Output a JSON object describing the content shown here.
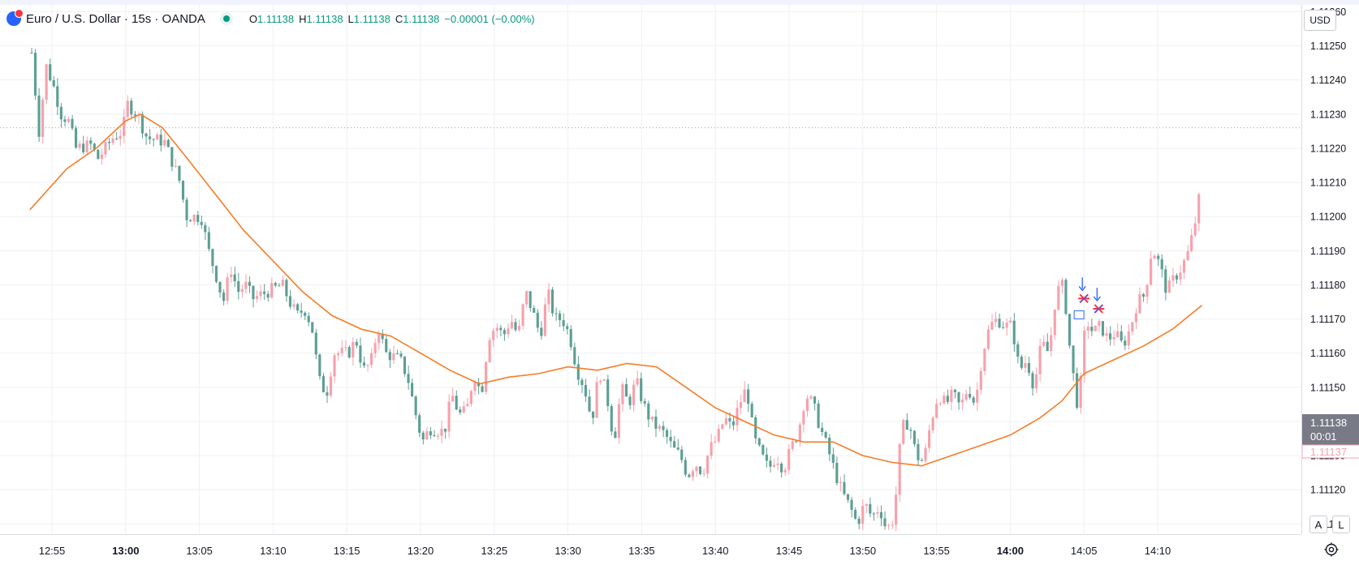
{
  "legend": {
    "title": "Euro / U.S. Dollar · 15s · OANDA",
    "o_label": "O",
    "o_value": "1.11138",
    "h_label": "H",
    "h_value": "1.11138",
    "l_label": "L",
    "l_value": "1.11138",
    "c_label": "C",
    "c_value": "1.11138",
    "change": "−0.00001 (−0.00%)"
  },
  "currency_button": "USD",
  "auto_scale_button": "A",
  "log_scale_button": "L",
  "settings_icon": "gear-icon",
  "price_tag": {
    "price": "1.11138",
    "countdown": "00:01",
    "prev": "1.11137"
  },
  "colors": {
    "up": "#f7a1ad",
    "down": "#5d9f93",
    "ma": "#f57c26",
    "grid": "#eef0f4",
    "marker_red": "#f23645",
    "marker_blue": "#2962ff"
  },
  "chart_data": {
    "type": "candlestick",
    "symbol": "Euro / U.S. Dollar",
    "interval": "15s",
    "x_ticks": [
      "12:55",
      "13:00",
      "13:05",
      "13:10",
      "13:15",
      "13:20",
      "13:25",
      "13:30",
      "13:35",
      "13:40",
      "13:45",
      "13:50",
      "13:55",
      "14:00",
      "14:05",
      "14:10"
    ],
    "x_ticks_bold": [
      "13:00",
      "14:00"
    ],
    "y_ticks": [
      "1.11260",
      "1.11250",
      "1.11240",
      "1.11230",
      "1.11220",
      "1.11210",
      "1.11200",
      "1.11190",
      "1.11180",
      "1.11170",
      "1.11160",
      "1.11150",
      "1.11140",
      "1.11130",
      "1.11120",
      "1.11110"
    ],
    "y_range": [
      1.11107,
      1.11262
    ],
    "reference_line": 1.11226,
    "close_path": [
      {
        "t": "12:53:30",
        "p": 1.11248
      },
      {
        "t": "12:54:00",
        "p": 1.11225
      },
      {
        "t": "12:54:30",
        "p": 1.11244
      },
      {
        "t": "12:55:00",
        "p": 1.11238
      },
      {
        "t": "12:55:30",
        "p": 1.1123
      },
      {
        "t": "12:56:00",
        "p": 1.11228
      },
      {
        "t": "12:56:30",
        "p": 1.1122
      },
      {
        "t": "12:57:30",
        "p": 1.11221
      },
      {
        "t": "12:58:00",
        "p": 1.11217
      },
      {
        "t": "12:59:00",
        "p": 1.11223
      },
      {
        "t": "12:59:40",
        "p": 1.11225
      },
      {
        "t": "13:00:00",
        "p": 1.11233
      },
      {
        "t": "13:00:40",
        "p": 1.1123
      },
      {
        "t": "13:01:20",
        "p": 1.11223
      },
      {
        "t": "13:02:30",
        "p": 1.11222
      },
      {
        "t": "13:03:30",
        "p": 1.11211
      },
      {
        "t": "13:04:00",
        "p": 1.112
      },
      {
        "t": "13:05:00",
        "p": 1.112
      },
      {
        "t": "13:05:30",
        "p": 1.1119
      },
      {
        "t": "13:06:00",
        "p": 1.11183
      },
      {
        "t": "13:06:30",
        "p": 1.11175
      },
      {
        "t": "13:07:00",
        "p": 1.11185
      },
      {
        "t": "13:07:30",
        "p": 1.11178
      },
      {
        "t": "13:08:00",
        "p": 1.1118
      },
      {
        "t": "13:08:30",
        "p": 1.11176
      },
      {
        "t": "13:09:30",
        "p": 1.11178
      },
      {
        "t": "13:10:30",
        "p": 1.1118
      },
      {
        "t": "13:11:00",
        "p": 1.11175
      },
      {
        "t": "13:11:30",
        "p": 1.11171
      },
      {
        "t": "13:12:00",
        "p": 1.11173
      },
      {
        "t": "13:12:30",
        "p": 1.11168
      },
      {
        "t": "13:13:00",
        "p": 1.11152
      },
      {
        "t": "13:13:30",
        "p": 1.11148
      },
      {
        "t": "13:14:00",
        "p": 1.1116
      },
      {
        "t": "13:15:00",
        "p": 1.1116
      },
      {
        "t": "13:15:30",
        "p": 1.11164
      },
      {
        "t": "13:16:00",
        "p": 1.11155
      },
      {
        "t": "13:16:30",
        "p": 1.11157
      },
      {
        "t": "13:17:00",
        "p": 1.11168
      },
      {
        "t": "13:17:30",
        "p": 1.1116
      },
      {
        "t": "13:18:30",
        "p": 1.11158
      },
      {
        "t": "13:19:00",
        "p": 1.11153
      },
      {
        "t": "13:19:30",
        "p": 1.11143
      },
      {
        "t": "13:20:00",
        "p": 1.11134
      },
      {
        "t": "13:20:30",
        "p": 1.11138
      },
      {
        "t": "13:21:30",
        "p": 1.11137
      },
      {
        "t": "13:22:00",
        "p": 1.11148
      },
      {
        "t": "13:22:30",
        "p": 1.11142
      },
      {
        "t": "13:23:00",
        "p": 1.11143
      },
      {
        "t": "13:23:30",
        "p": 1.11154
      },
      {
        "t": "13:24:00",
        "p": 1.11148
      },
      {
        "t": "13:24:30",
        "p": 1.11165
      },
      {
        "t": "13:25:00",
        "p": 1.11168
      },
      {
        "t": "13:25:30",
        "p": 1.11165
      },
      {
        "t": "13:26:00",
        "p": 1.1117
      },
      {
        "t": "13:26:30",
        "p": 1.11165
      },
      {
        "t": "13:27:00",
        "p": 1.11178
      },
      {
        "t": "13:27:30",
        "p": 1.11172
      },
      {
        "t": "13:28:00",
        "p": 1.11165
      },
      {
        "t": "13:28:30",
        "p": 1.11178
      },
      {
        "t": "13:29:00",
        "p": 1.1117
      },
      {
        "t": "13:29:30",
        "p": 1.1117
      },
      {
        "t": "13:30:00",
        "p": 1.11165
      },
      {
        "t": "13:30:30",
        "p": 1.11155
      },
      {
        "t": "13:31:00",
        "p": 1.1115
      },
      {
        "t": "13:31:30",
        "p": 1.1114
      },
      {
        "t": "13:32:00",
        "p": 1.11155
      },
      {
        "t": "13:32:30",
        "p": 1.11148
      },
      {
        "t": "13:33:00",
        "p": 1.11134
      },
      {
        "t": "13:33:30",
        "p": 1.1115
      },
      {
        "t": "13:34:00",
        "p": 1.11145
      },
      {
        "t": "13:34:30",
        "p": 1.11152
      },
      {
        "t": "13:35:00",
        "p": 1.11145
      },
      {
        "t": "13:35:30",
        "p": 1.1114
      },
      {
        "t": "13:36:00",
        "p": 1.11138
      },
      {
        "t": "13:36:30",
        "p": 1.11136
      },
      {
        "t": "13:37:00",
        "p": 1.11132
      },
      {
        "t": "13:37:30",
        "p": 1.1113
      },
      {
        "t": "13:38:00",
        "p": 1.11124
      },
      {
        "t": "13:38:30",
        "p": 1.11128
      },
      {
        "t": "13:39:00",
        "p": 1.11125
      },
      {
        "t": "13:39:30",
        "p": 1.11132
      },
      {
        "t": "13:40:00",
        "p": 1.11135
      },
      {
        "t": "13:40:30",
        "p": 1.11141
      },
      {
        "t": "13:41:00",
        "p": 1.11138
      },
      {
        "t": "13:41:30",
        "p": 1.11145
      },
      {
        "t": "13:42:00",
        "p": 1.1115
      },
      {
        "t": "13:42:30",
        "p": 1.11135
      },
      {
        "t": "13:43:00",
        "p": 1.1113
      },
      {
        "t": "13:43:30",
        "p": 1.11126
      },
      {
        "t": "13:44:00",
        "p": 1.1113
      },
      {
        "t": "13:44:30",
        "p": 1.11126
      },
      {
        "t": "13:45:00",
        "p": 1.11132
      },
      {
        "t": "13:45:30",
        "p": 1.11137
      },
      {
        "t": "13:46:00",
        "p": 1.11148
      },
      {
        "t": "13:46:30",
        "p": 1.11145
      },
      {
        "t": "13:47:00",
        "p": 1.11138
      },
      {
        "t": "13:47:30",
        "p": 1.11132
      },
      {
        "t": "13:48:00",
        "p": 1.11125
      },
      {
        "t": "13:48:30",
        "p": 1.11119
      },
      {
        "t": "13:49:00",
        "p": 1.11115
      },
      {
        "t": "13:49:30",
        "p": 1.1111
      },
      {
        "t": "13:50:00",
        "p": 1.11116
      },
      {
        "t": "13:50:30",
        "p": 1.11112
      },
      {
        "t": "13:51:00",
        "p": 1.11115
      },
      {
        "t": "13:51:30",
        "p": 1.11108
      },
      {
        "t": "13:52:00",
        "p": 1.11112
      },
      {
        "t": "13:52:30",
        "p": 1.11138
      },
      {
        "t": "13:53:00",
        "p": 1.1114
      },
      {
        "t": "13:53:30",
        "p": 1.1113
      },
      {
        "t": "13:54:00",
        "p": 1.11128
      },
      {
        "t": "13:54:30",
        "p": 1.1114
      },
      {
        "t": "13:55:00",
        "p": 1.11148
      },
      {
        "t": "13:55:30",
        "p": 1.11145
      },
      {
        "t": "13:56:00",
        "p": 1.11148
      },
      {
        "t": "13:56:30",
        "p": 1.11144
      },
      {
        "t": "13:57:00",
        "p": 1.1115
      },
      {
        "t": "13:57:30",
        "p": 1.11145
      },
      {
        "t": "13:58:00",
        "p": 1.1116
      },
      {
        "t": "13:58:30",
        "p": 1.11168
      },
      {
        "t": "13:59:00",
        "p": 1.1117
      },
      {
        "t": "13:59:30",
        "p": 1.11168
      },
      {
        "t": "14:00:00",
        "p": 1.11168
      },
      {
        "t": "14:00:30",
        "p": 1.11155
      },
      {
        "t": "14:01:00",
        "p": 1.11158
      },
      {
        "t": "14:01:30",
        "p": 1.1115
      },
      {
        "t": "14:02:00",
        "p": 1.11163
      },
      {
        "t": "14:02:30",
        "p": 1.1116
      },
      {
        "t": "14:03:00",
        "p": 1.11178
      },
      {
        "t": "14:03:30",
        "p": 1.1118
      },
      {
        "t": "14:04:00",
        "p": 1.11158
      },
      {
        "t": "14:04:30",
        "p": 1.11143
      },
      {
        "t": "14:05:00",
        "p": 1.1117
      },
      {
        "t": "14:05:30",
        "p": 1.11166
      },
      {
        "t": "14:06:00",
        "p": 1.11168
      },
      {
        "t": "14:06:30",
        "p": 1.11164
      },
      {
        "t": "14:07:00",
        "p": 1.11166
      },
      {
        "t": "14:07:30",
        "p": 1.11162
      },
      {
        "t": "14:08:00",
        "p": 1.11167
      },
      {
        "t": "14:08:30",
        "p": 1.11175
      },
      {
        "t": "14:09:00",
        "p": 1.11177
      },
      {
        "t": "14:09:30",
        "p": 1.11191
      },
      {
        "t": "14:10:00",
        "p": 1.11186
      },
      {
        "t": "14:10:30",
        "p": 1.11178
      },
      {
        "t": "14:11:00",
        "p": 1.11182
      },
      {
        "t": "14:11:30",
        "p": 1.11185
      },
      {
        "t": "14:12:00",
        "p": 1.1119
      },
      {
        "t": "14:12:30",
        "p": 1.112
      },
      {
        "t": "14:12:45",
        "p": 1.11207
      }
    ],
    "moving_average": [
      {
        "t": "12:53:30",
        "p": 1.11202
      },
      {
        "t": "12:56:00",
        "p": 1.11214
      },
      {
        "t": "12:58:00",
        "p": 1.1122
      },
      {
        "t": "13:00:00",
        "p": 1.11228
      },
      {
        "t": "13:01:00",
        "p": 1.1123
      },
      {
        "t": "13:02:30",
        "p": 1.11226
      },
      {
        "t": "13:04:00",
        "p": 1.11218
      },
      {
        "t": "13:06:00",
        "p": 1.11207
      },
      {
        "t": "13:08:00",
        "p": 1.11196
      },
      {
        "t": "13:10:00",
        "p": 1.11187
      },
      {
        "t": "13:12:00",
        "p": 1.11178
      },
      {
        "t": "13:14:00",
        "p": 1.11171
      },
      {
        "t": "13:16:00",
        "p": 1.11167
      },
      {
        "t": "13:18:00",
        "p": 1.11165
      },
      {
        "t": "13:20:00",
        "p": 1.1116
      },
      {
        "t": "13:22:00",
        "p": 1.11155
      },
      {
        "t": "13:24:00",
        "p": 1.11151
      },
      {
        "t": "13:26:00",
        "p": 1.11153
      },
      {
        "t": "13:28:00",
        "p": 1.11154
      },
      {
        "t": "13:30:00",
        "p": 1.11156
      },
      {
        "t": "13:32:00",
        "p": 1.11155
      },
      {
        "t": "13:34:00",
        "p": 1.11157
      },
      {
        "t": "13:36:00",
        "p": 1.11156
      },
      {
        "t": "13:38:00",
        "p": 1.1115
      },
      {
        "t": "13:40:00",
        "p": 1.11144
      },
      {
        "t": "13:42:00",
        "p": 1.1114
      },
      {
        "t": "13:44:00",
        "p": 1.11136
      },
      {
        "t": "13:46:00",
        "p": 1.11134
      },
      {
        "t": "13:48:00",
        "p": 1.11134
      },
      {
        "t": "13:50:00",
        "p": 1.1113
      },
      {
        "t": "13:52:00",
        "p": 1.11128
      },
      {
        "t": "13:54:00",
        "p": 1.11127
      },
      {
        "t": "13:56:00",
        "p": 1.1113
      },
      {
        "t": "13:58:00",
        "p": 1.11133
      },
      {
        "t": "14:00:00",
        "p": 1.11136
      },
      {
        "t": "14:02:00",
        "p": 1.11141
      },
      {
        "t": "14:03:30",
        "p": 1.11146
      },
      {
        "t": "14:05:00",
        "p": 1.11154
      },
      {
        "t": "14:07:00",
        "p": 1.11158
      },
      {
        "t": "14:09:00",
        "p": 1.11162
      },
      {
        "t": "14:11:00",
        "p": 1.11167
      },
      {
        "t": "14:13:00",
        "p": 1.11174
      }
    ],
    "markers": [
      {
        "t": "14:05:00",
        "p": 1.11176
      },
      {
        "t": "14:06:00",
        "p": 1.11173
      }
    ],
    "boxed_marker": {
      "t": "14:04:40",
      "p": 1.11171
    }
  }
}
